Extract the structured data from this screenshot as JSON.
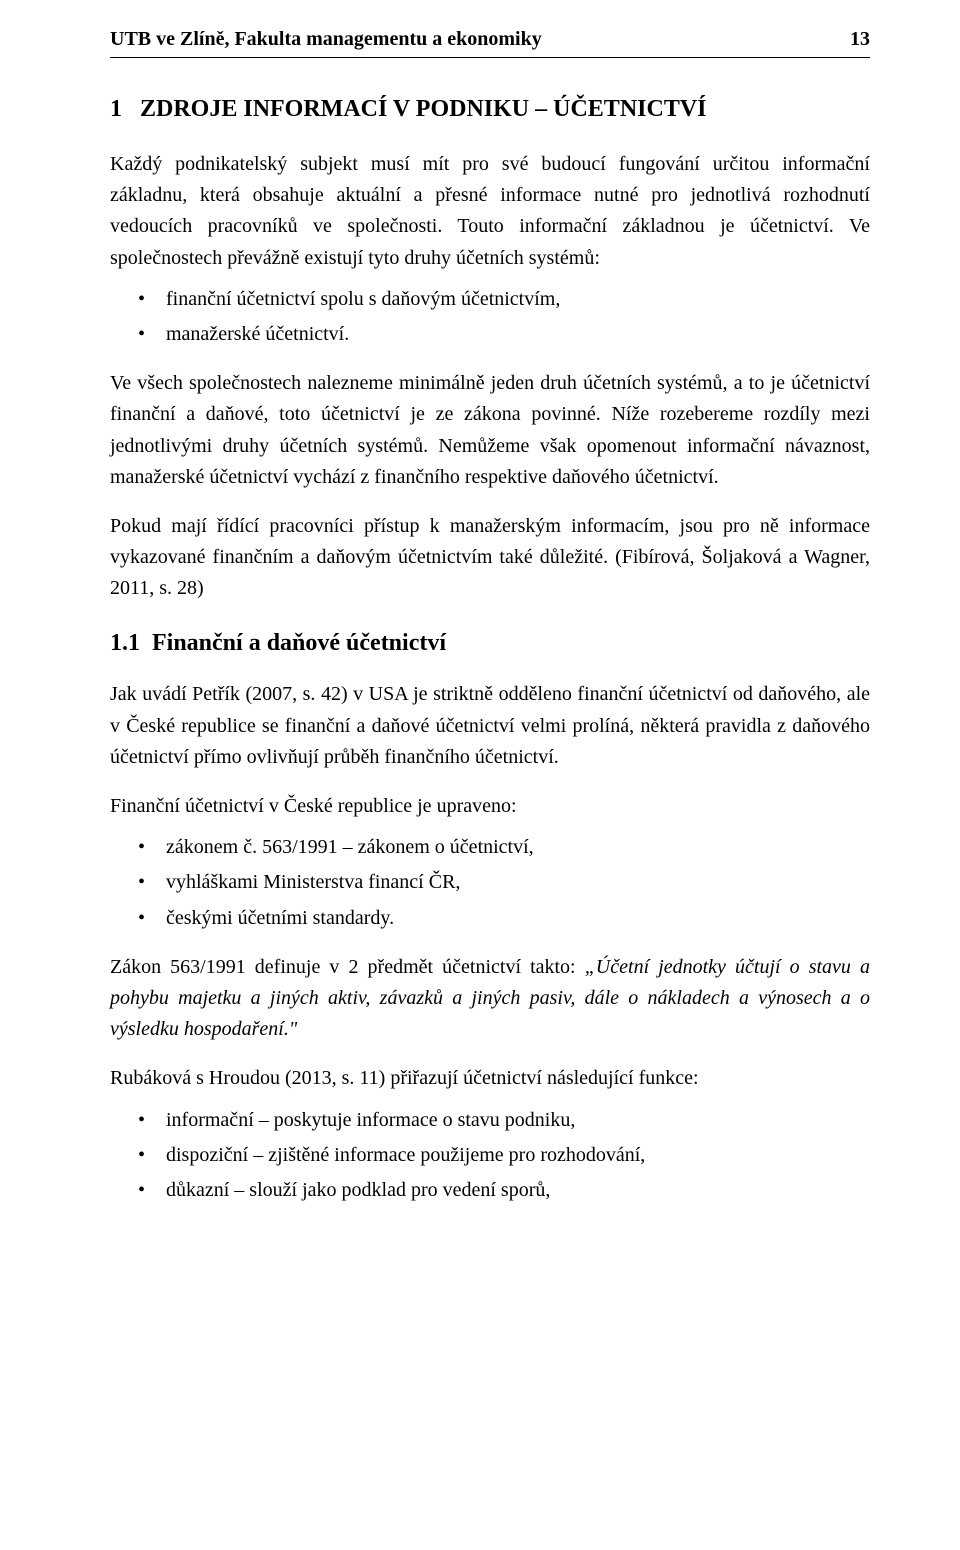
{
  "header": {
    "left": "UTB ve Zlíně, Fakulta managementu a ekonomiky",
    "page_number": "13"
  },
  "chapter": {
    "number": "1",
    "title": "ZDROJE INFORMACÍ V PODNIKU – ÚČETNICTVÍ"
  },
  "intro_para": "Každý podnikatelský subjekt musí mít pro své budoucí fungování určitou informační základnu, která obsahuje aktuální a přesné informace nutné pro jednotlivá rozhodnutí vedoucích pracovníků ve společnosti. Touto informační základnou je účetnictví. Ve společnostech převážně existují tyto druhy účetních systémů:",
  "list_systems": [
    "finanční účetnictví spolu s daňovým účetnictvím,",
    "manažerské účetnictví."
  ],
  "para2": "Ve všech společnostech nalezneme minimálně jeden druh účetních systémů, a to je účetnictví finanční a daňové, toto účetnictví je ze zákona povinné. Níže rozebereme rozdíly mezi jednotlivými druhy účetních systémů. Nemůžeme však opomenout informační návaznost, manažerské účetnictví vychází z finančního respektive daňového účetnictví.",
  "para3": "Pokud mají řídící pracovníci přístup k manažerským informacím, jsou pro ně informace vykazované finančním a daňovým účetnictvím také důležité. (Fibírová, Šoljaková a Wagner, 2011, s. 28)",
  "section": {
    "number": "1.1",
    "title": "Finanční a daňové účetnictví"
  },
  "para_sec1": "Jak uvádí Petřík (2007, s. 42) v USA je striktně odděleno finanční účetnictví od daňového, ale v České republice se finanční a daňové účetnictví velmi prolíná, některá pravidla z daňového účetnictví přímo ovlivňují průběh finančního účetnictví.",
  "para_sec2": "Finanční účetnictví v České republice je upraveno:",
  "list_law": [
    "zákonem č. 563/1991 – zákonem o účetnictví,",
    "vyhláškami Ministerstva financí ČR,",
    "českými účetními standardy."
  ],
  "law_para_prefix": "Zákon 563/1991 definuje v 2 předmět účetnictví takto: ",
  "law_quote": "„Účetní jednotky účtují o stavu a pohybu majetku a jiných aktiv, závazků a jiných pasiv, dále o nákladech a výnosech a o výsledku hospodaření.\"",
  "para_sec4": "Rubáková s Hroudou (2013, s. 11) přiřazují účetnictví následující funkce:",
  "list_functions": [
    "informační – poskytuje informace o stavu podniku,",
    "dispoziční – zjištěné informace použijeme pro rozhodování,",
    "důkazní – slouží jako podklad pro vedení sporů,"
  ]
}
